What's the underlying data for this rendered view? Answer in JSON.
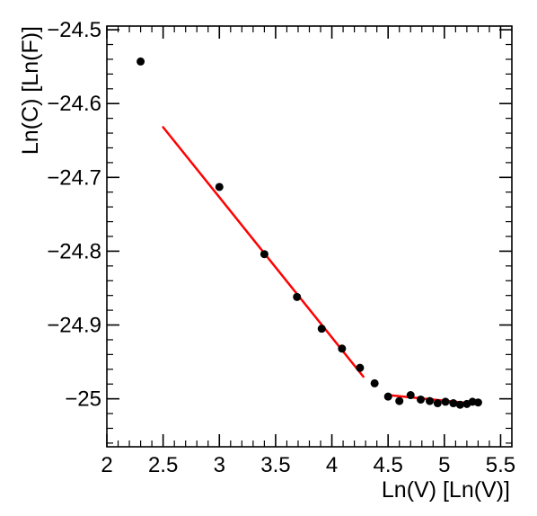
{
  "chart_data": {
    "type": "scatter",
    "title": "",
    "xlabel": "Ln(V) [Ln(V)]",
    "ylabel": "Ln(C) [Ln(F)]",
    "xlim": [
      2.0,
      5.6
    ],
    "ylim": [
      -25.065,
      -24.495
    ],
    "grid": false,
    "x_ticks": [
      2,
      2.5,
      3,
      3.5,
      4,
      4.5,
      5,
      5.5
    ],
    "y_ticks": [
      -25,
      -24.9,
      -24.8,
      -24.7,
      -24.6,
      -24.5
    ],
    "x_tick_labels": [
      "2",
      "2.5",
      "3",
      "3.5",
      "4",
      "4.5",
      "5",
      "5.5"
    ],
    "y_tick_labels": [
      "−25",
      "−24.9",
      "−24.8",
      "−24.7",
      "−24.6",
      "−24.5"
    ],
    "series": [
      {
        "type": "scatter",
        "color": "#000000",
        "points": [
          {
            "x": 2.3,
            "y": -24.543
          },
          {
            "x": 3.0,
            "y": -24.713
          },
          {
            "x": 3.4,
            "y": -24.804
          },
          {
            "x": 3.69,
            "y": -24.862
          },
          {
            "x": 3.91,
            "y": -24.905
          },
          {
            "x": 4.09,
            "y": -24.932
          },
          {
            "x": 4.25,
            "y": -24.958
          },
          {
            "x": 4.38,
            "y": -24.979
          },
          {
            "x": 4.5,
            "y": -24.997
          },
          {
            "x": 4.6,
            "y": -25.003
          },
          {
            "x": 4.7,
            "y": -24.995
          },
          {
            "x": 4.79,
            "y": -25.001
          },
          {
            "x": 4.87,
            "y": -25.003
          },
          {
            "x": 4.94,
            "y": -25.006
          },
          {
            "x": 5.01,
            "y": -25.004
          },
          {
            "x": 5.08,
            "y": -25.006
          },
          {
            "x": 5.14,
            "y": -25.008
          },
          {
            "x": 5.2,
            "y": -25.007
          },
          {
            "x": 5.25,
            "y": -25.004
          },
          {
            "x": 5.3,
            "y": -25.005
          }
        ]
      },
      {
        "type": "line",
        "color": "#ff0000",
        "points": [
          {
            "x": 2.5,
            "y": -24.632
          },
          {
            "x": 4.28,
            "y": -24.97
          }
        ]
      },
      {
        "type": "line",
        "color": "#ff0000",
        "points": [
          {
            "x": 4.5,
            "y": -24.995
          },
          {
            "x": 5.3,
            "y": -25.007
          }
        ]
      }
    ]
  }
}
